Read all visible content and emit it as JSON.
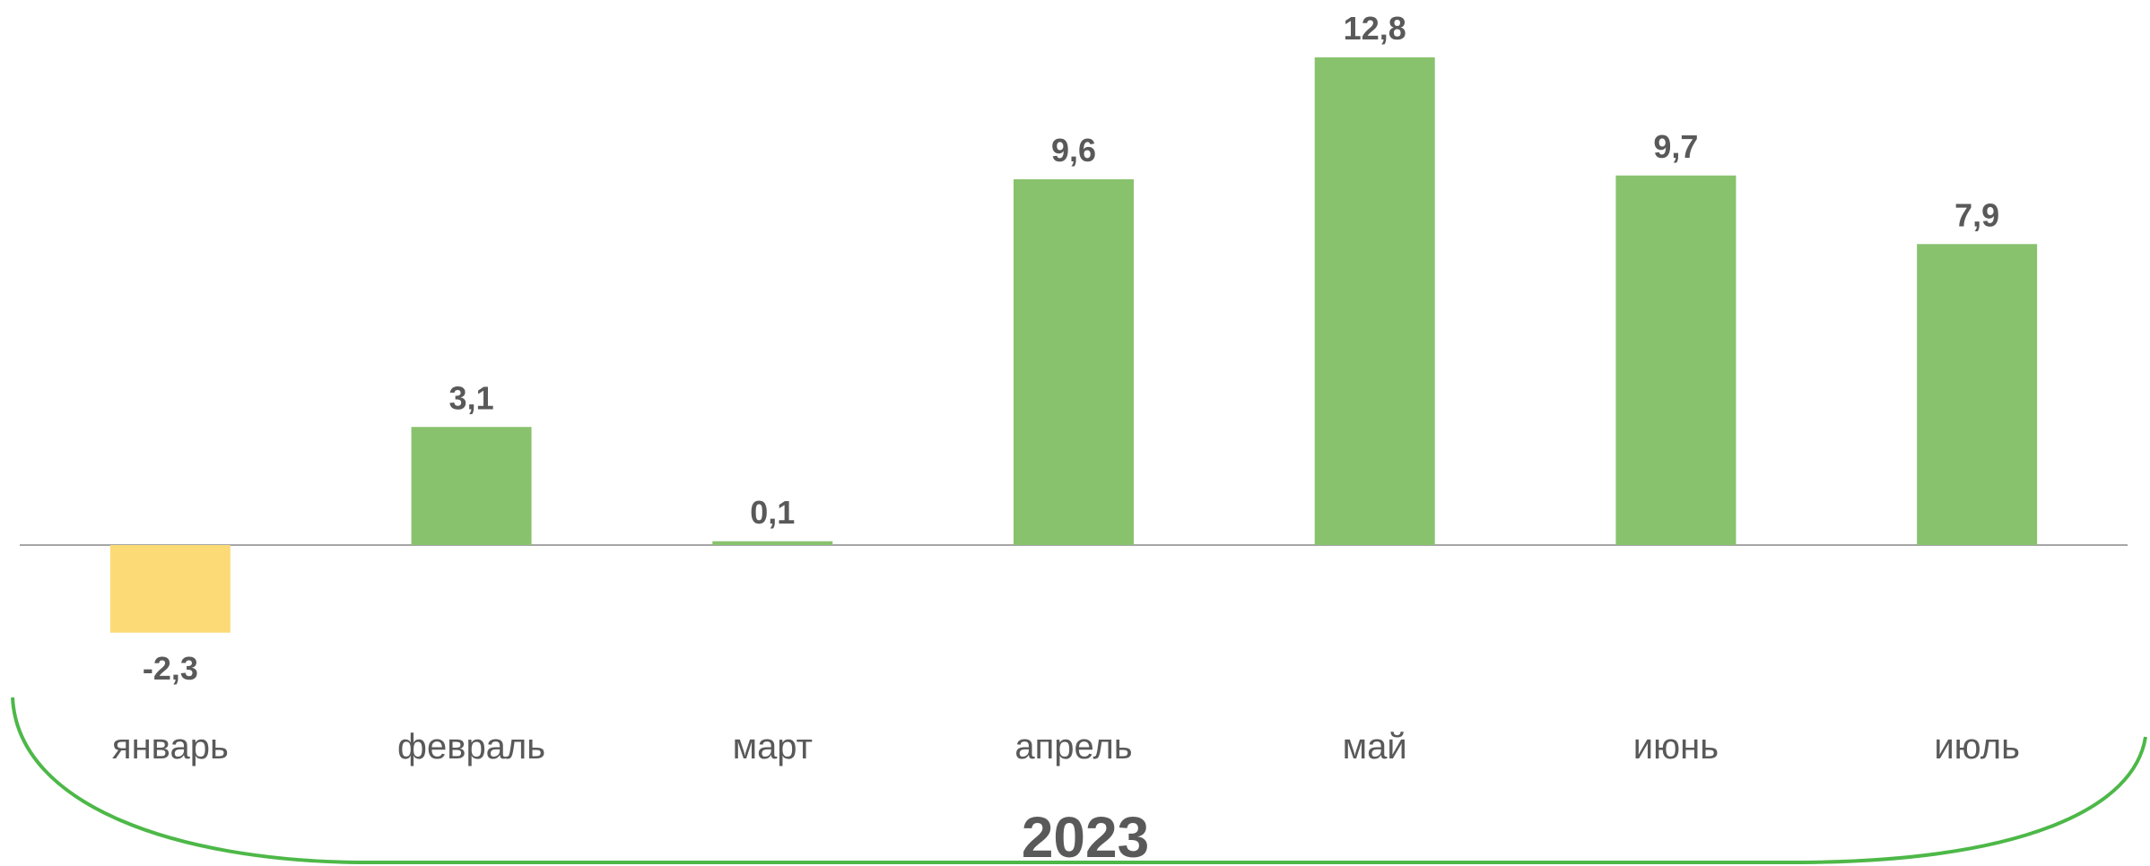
{
  "chart_data": {
    "type": "bar",
    "categories": [
      "январь",
      "февраль",
      "март",
      "апрель",
      "май",
      "июнь",
      "июль"
    ],
    "values": [
      -2.3,
      3.1,
      0.1,
      9.6,
      12.8,
      9.7,
      7.9
    ],
    "value_labels": [
      "-2,3",
      "3,1",
      "0,1",
      "9,6",
      "12,8",
      "9,7",
      "7,9"
    ],
    "group_label": "2023",
    "colors": {
      "positive": "#88C26D",
      "negative": "#FCDB77",
      "bracket": "#4DB848",
      "axis": "#A6A6A6"
    },
    "grid": false,
    "legend": "none"
  }
}
